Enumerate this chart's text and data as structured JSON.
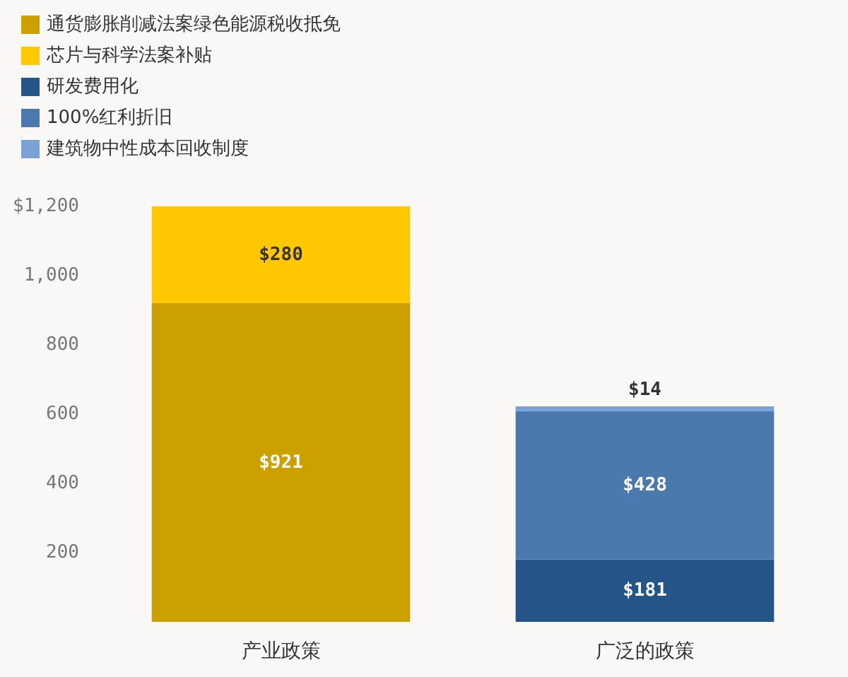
{
  "chart_data": {
    "type": "bar",
    "stacked": true,
    "categories": [
      "产业政策",
      "广泛的政策"
    ],
    "series": [
      {
        "name": "通货膨胀削减法案绿色能源税收抵免",
        "color": "#cba000",
        "values": [
          921,
          null
        ],
        "value_labels": [
          "$921",
          null
        ]
      },
      {
        "name": "芯片与科学法案补贴",
        "color": "#ffc800",
        "values": [
          280,
          null
        ],
        "value_labels": [
          "$280",
          null
        ]
      },
      {
        "name": "研发费用化",
        "color": "#245488",
        "values": [
          null,
          181
        ],
        "value_labels": [
          null,
          "$181"
        ]
      },
      {
        "name": "100%红利折旧",
        "color": "#4b79ae",
        "values": [
          null,
          428
        ],
        "value_labels": [
          null,
          "$428"
        ]
      },
      {
        "name": "建筑物中性成本回收制度",
        "color": "#7ba2d6",
        "values": [
          null,
          14
        ],
        "value_labels": [
          null,
          "$14"
        ]
      }
    ],
    "ylim": [
      0,
      1201
    ],
    "yticks": [
      200,
      400,
      600,
      800,
      {
        "value": 1000,
        "label": "1,000"
      },
      {
        "value": 1200,
        "label": "$1,200"
      }
    ],
    "legend": "top left"
  }
}
